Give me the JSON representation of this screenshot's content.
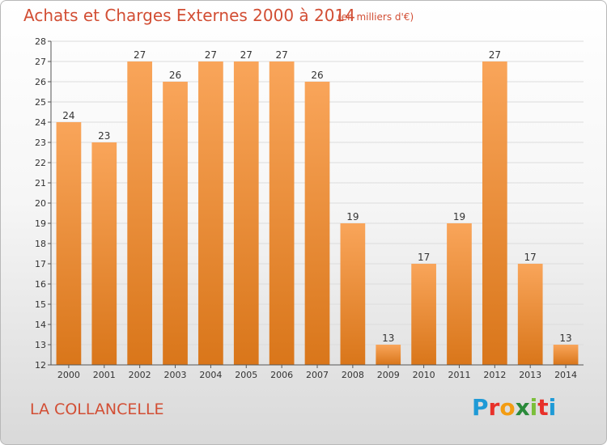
{
  "header": {
    "title": "Achats et Charges Externes 2000 à 2014",
    "subtitle": "(en milliers d'€)"
  },
  "footer": {
    "place": "LA COLLANCELLE",
    "logo": {
      "text": "Proxiti",
      "letters": [
        {
          "ch": "P",
          "color": "#1f9ad6"
        },
        {
          "ch": "r",
          "color": "#e8312a"
        },
        {
          "ch": "o",
          "color": "#f39c12"
        },
        {
          "ch": "x",
          "color": "#2a8a3a"
        },
        {
          "ch": "i",
          "color": "#7bbf3a"
        },
        {
          "ch": "t",
          "color": "#e8312a"
        },
        {
          "ch": "i",
          "color": "#1f9ad6"
        }
      ]
    }
  },
  "chart_data": {
    "type": "bar",
    "categories": [
      "2000",
      "2001",
      "2002",
      "2003",
      "2004",
      "2005",
      "2006",
      "2007",
      "2008",
      "2009",
      "2010",
      "2011",
      "2012",
      "2013",
      "2014"
    ],
    "values": [
      24,
      23,
      27,
      26,
      27,
      27,
      27,
      26,
      19,
      13,
      17,
      19,
      27,
      17,
      13
    ],
    "ylim": [
      12,
      28
    ],
    "yticks": [
      12,
      13,
      14,
      15,
      16,
      17,
      18,
      19,
      20,
      21,
      22,
      23,
      24,
      25,
      26,
      27,
      28
    ],
    "grid": true,
    "bar_color_top": "#f9a55a",
    "bar_color_bottom": "#d9761a"
  }
}
